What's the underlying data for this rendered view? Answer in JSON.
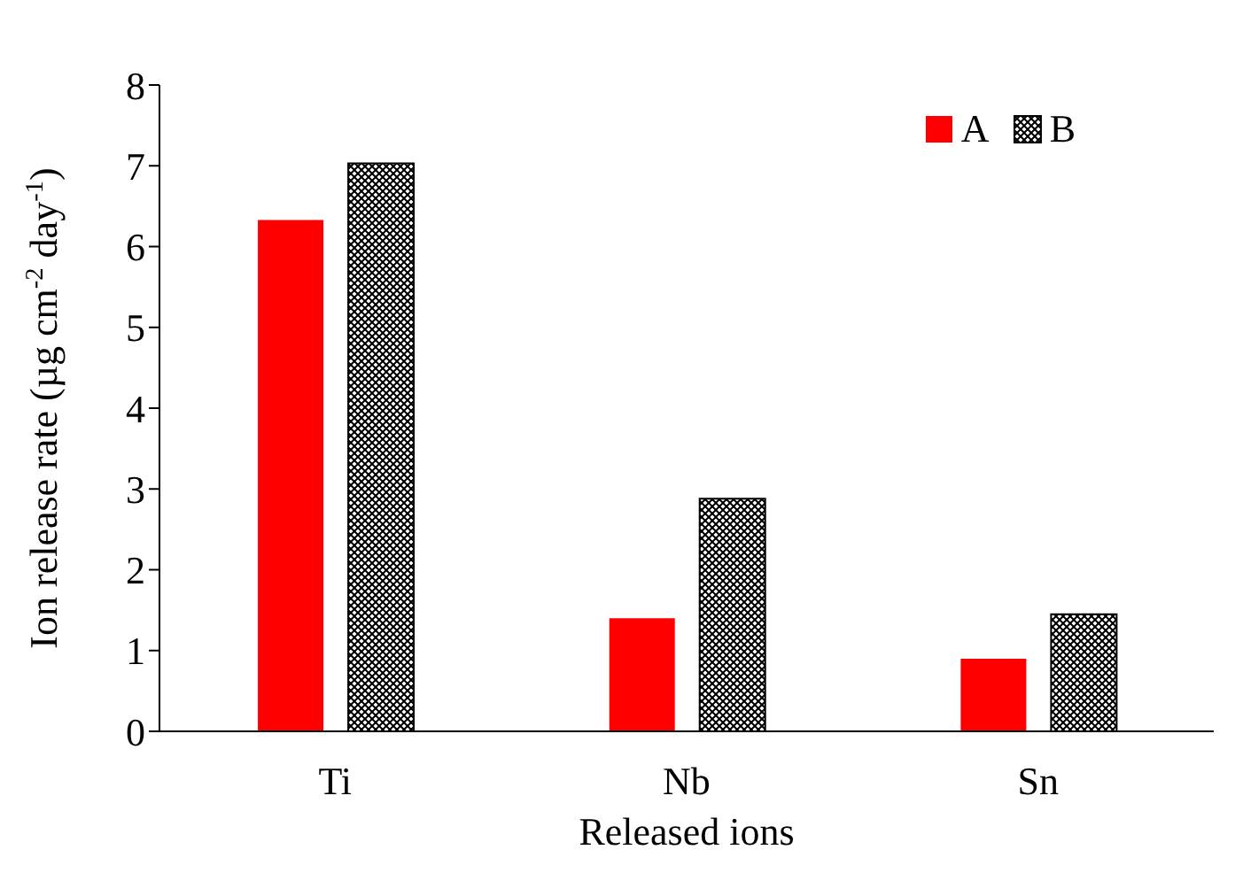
{
  "chart_data": {
    "type": "bar",
    "xlabel": "Released ions",
    "ylabel": "Ion release rate (µg cm$^{-2}$ day$^{-1}$)",
    "categories": [
      "Ti",
      "Nb",
      "Sn"
    ],
    "series": [
      {
        "name": "A",
        "color": "#ff0000",
        "values": [
          6.33,
          1.4,
          0.9
        ]
      },
      {
        "name": "B",
        "color": "#000000",
        "values": [
          7.03,
          2.88,
          1.45
        ]
      }
    ],
    "ylim": [
      0,
      8
    ],
    "yticks": [
      0,
      1,
      2,
      3,
      4,
      5,
      6,
      7,
      8
    ],
    "legend": "top right"
  }
}
